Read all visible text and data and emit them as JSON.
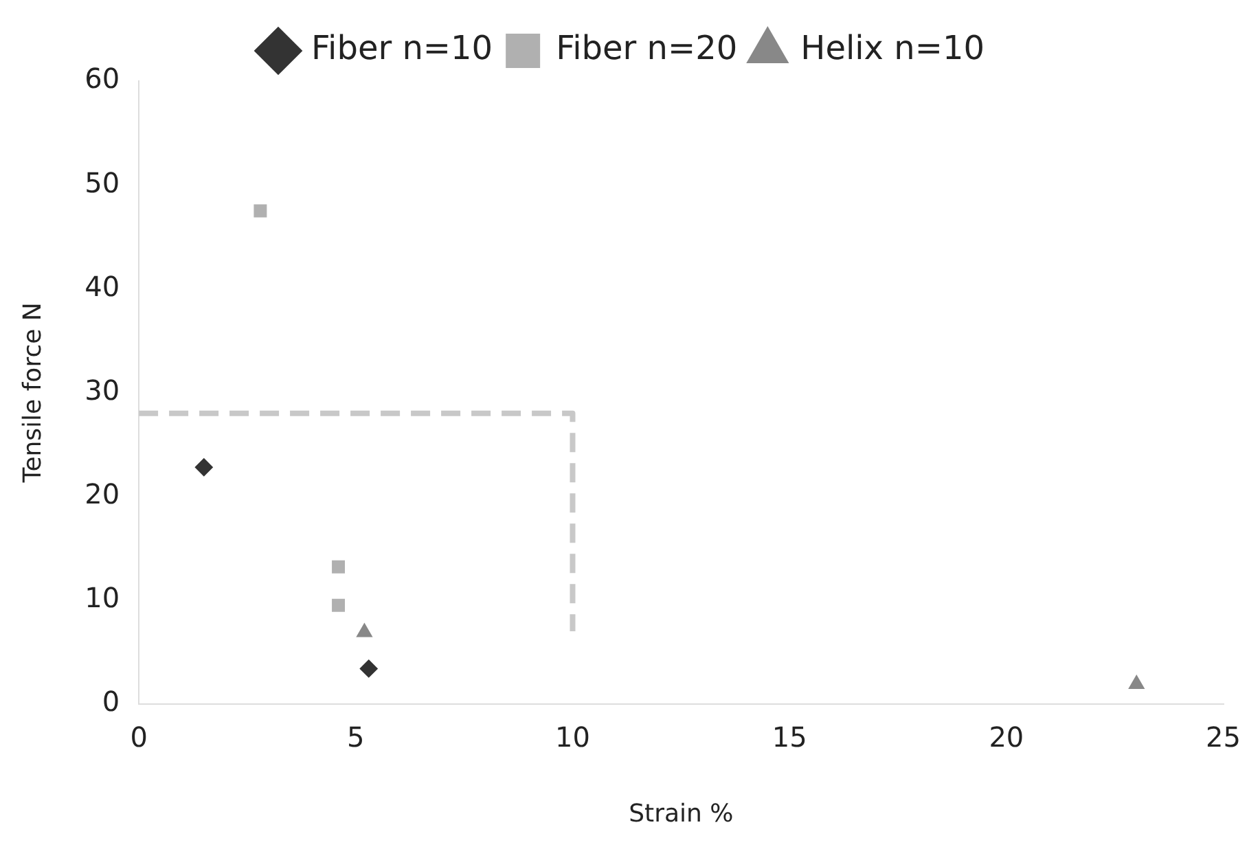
{
  "chart_data": {
    "type": "scatter",
    "xlabel": "Strain %",
    "ylabel": "Tensile force N",
    "xlim": [
      0,
      25
    ],
    "xticks": [
      0,
      5,
      10,
      15,
      20,
      25
    ],
    "ylim": [
      0,
      60
    ],
    "yticks": [
      0,
      10,
      20,
      30,
      40,
      50,
      60
    ],
    "grid": false,
    "legend": "top",
    "series": [
      {
        "name": "Fiber n=10",
        "color": "#333333",
        "marker": "diamond",
        "x": [
          1.5,
          5.3
        ],
        "values": [
          22.8,
          3.4
        ]
      },
      {
        "name": "Fiber n=20",
        "color": "#b0b0b0",
        "marker": "square",
        "x": [
          2.8,
          4.6,
          4.6
        ],
        "values": [
          47.5,
          13.2,
          9.5
        ]
      },
      {
        "name": "Helix n=10",
        "color": "#888888",
        "marker": "triangle",
        "x": [
          5.2,
          23
        ],
        "values": [
          6.9,
          1.9
        ]
      },
      {
        "type": "line",
        "color": "#c8c8c8",
        "line_style": "dashed",
        "marker": "none",
        "x": [
          0,
          10,
          10
        ],
        "values": [
          28,
          28,
          7
        ]
      }
    ]
  }
}
